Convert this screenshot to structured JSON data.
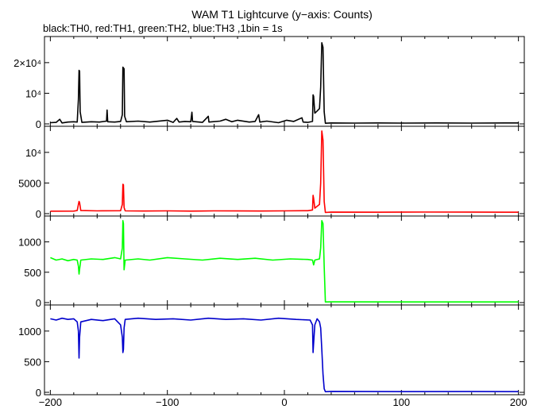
{
  "title": "WAM T1 Lightcurve (y−axis: Counts)",
  "subtitle": "black:TH0, red:TH1, green:TH2, blue:TH3 ,1bin = 1s",
  "chart_data": [
    {
      "type": "line",
      "series": [
        {
          "name": "TH0",
          "color": "#000000",
          "points": [
            [
              -200,
              400
            ],
            [
              -195,
              500
            ],
            [
              -192,
              1500
            ],
            [
              -190,
              300
            ],
            [
              -185,
              600
            ],
            [
              -180,
              700
            ],
            [
              -177,
              600
            ],
            [
              -176,
              8000
            ],
            [
              -175.5,
              17500
            ],
            [
              -175,
              17200
            ],
            [
              -174.5,
              4000
            ],
            [
              -173,
              500
            ],
            [
              -165,
              700
            ],
            [
              -158,
              600
            ],
            [
              -152,
              900
            ],
            [
              -151.5,
              4500
            ],
            [
              -151,
              700
            ],
            [
              -145,
              600
            ],
            [
              -140,
              800
            ],
            [
              -138.5,
              3000
            ],
            [
              -138,
              18500
            ],
            [
              -137,
              18000
            ],
            [
              -136.5,
              2500
            ],
            [
              -135,
              700
            ],
            [
              -125,
              900
            ],
            [
              -115,
              600
            ],
            [
              -100,
              1200
            ],
            [
              -95,
              500
            ],
            [
              -92,
              1800
            ],
            [
              -90,
              600
            ],
            [
              -85,
              800
            ],
            [
              -80,
              700
            ],
            [
              -79,
              3800
            ],
            [
              -78.5,
              800
            ],
            [
              -70,
              500
            ],
            [
              -65,
              2500
            ],
            [
              -64.5,
              600
            ],
            [
              -55,
              900
            ],
            [
              -50,
              1500
            ],
            [
              -45,
              700
            ],
            [
              -40,
              1200
            ],
            [
              -30,
              600
            ],
            [
              -25,
              800
            ],
            [
              -22,
              3000
            ],
            [
              -21,
              600
            ],
            [
              -15,
              900
            ],
            [
              -5,
              400
            ],
            [
              2,
              1200
            ],
            [
              8,
              800
            ],
            [
              15,
              2000
            ],
            [
              16,
              600
            ],
            [
              20,
              500
            ],
            [
              24,
              800
            ],
            [
              24.5,
              9500
            ],
            [
              25,
              9000
            ],
            [
              26,
              3500
            ],
            [
              28,
              4200
            ],
            [
              30,
              5000
            ],
            [
              31,
              12000
            ],
            [
              32,
              26500
            ],
            [
              33,
              25000
            ],
            [
              34,
              4000
            ],
            [
              35,
              200
            ],
            [
              40,
              300
            ],
            [
              60,
              250
            ],
            [
              80,
              300
            ],
            [
              100,
              250
            ],
            [
              130,
              300
            ],
            [
              160,
              250
            ],
            [
              200,
              300
            ]
          ]
        }
      ],
      "ylim": [
        0,
        28000
      ],
      "yticks": [
        {
          "v": 0,
          "label": "0"
        },
        {
          "v": 10000,
          "label": "10⁴"
        },
        {
          "v": 20000,
          "label": "2×10⁴"
        }
      ]
    },
    {
      "type": "line",
      "series": [
        {
          "name": "TH1",
          "color": "#ff0000",
          "points": [
            [
              -200,
              400
            ],
            [
              -180,
              420
            ],
            [
              -177,
              500
            ],
            [
              -176,
              1500
            ],
            [
              -175.5,
              2000
            ],
            [
              -175,
              1800
            ],
            [
              -174,
              500
            ],
            [
              -160,
              450
            ],
            [
              -140,
              480
            ],
            [
              -138.5,
              1500
            ],
            [
              -138,
              4800
            ],
            [
              -137.5,
              4700
            ],
            [
              -137,
              1000
            ],
            [
              -136,
              450
            ],
            [
              -120,
              430
            ],
            [
              -100,
              450
            ],
            [
              -80,
              420
            ],
            [
              -60,
              460
            ],
            [
              -40,
              440
            ],
            [
              -20,
              430
            ],
            [
              0,
              450
            ],
            [
              20,
              480
            ],
            [
              24,
              600
            ],
            [
              24.5,
              3000
            ],
            [
              25,
              2500
            ],
            [
              26,
              900
            ],
            [
              28,
              1200
            ],
            [
              30,
              1500
            ],
            [
              31,
              5000
            ],
            [
              32,
              13500
            ],
            [
              33,
              12000
            ],
            [
              34,
              2000
            ],
            [
              35,
              200
            ],
            [
              40,
              250
            ],
            [
              80,
              230
            ],
            [
              120,
              260
            ],
            [
              160,
              240
            ],
            [
              200,
              230
            ]
          ]
        }
      ],
      "ylim": [
        0,
        14000
      ],
      "yticks": [
        {
          "v": 0,
          "label": "0"
        },
        {
          "v": 5000,
          "label": "5000"
        },
        {
          "v": 10000,
          "label": "10⁴"
        }
      ]
    },
    {
      "type": "line",
      "series": [
        {
          "name": "TH2",
          "color": "#00ff00",
          "points": [
            [
              -200,
              740
            ],
            [
              -195,
              700
            ],
            [
              -190,
              720
            ],
            [
              -185,
              690
            ],
            [
              -180,
              710
            ],
            [
              -177,
              700
            ],
            [
              -176,
              600
            ],
            [
              -175.5,
              470
            ],
            [
              -175,
              550
            ],
            [
              -174,
              700
            ],
            [
              -165,
              720
            ],
            [
              -155,
              710
            ],
            [
              -145,
              740
            ],
            [
              -140,
              720
            ],
            [
              -138.5,
              900
            ],
            [
              -138,
              1350
            ],
            [
              -137.5,
              1300
            ],
            [
              -137,
              540
            ],
            [
              -136,
              700
            ],
            [
              -125,
              720
            ],
            [
              -115,
              700
            ],
            [
              -100,
              740
            ],
            [
              -85,
              720
            ],
            [
              -70,
              700
            ],
            [
              -55,
              730
            ],
            [
              -40,
              710
            ],
            [
              -25,
              730
            ],
            [
              -10,
              700
            ],
            [
              5,
              720
            ],
            [
              20,
              710
            ],
            [
              24,
              700
            ],
            [
              25,
              620
            ],
            [
              26,
              700
            ],
            [
              30,
              720
            ],
            [
              31,
              900
            ],
            [
              32,
              1350
            ],
            [
              33,
              1300
            ],
            [
              34,
              600
            ],
            [
              35,
              10
            ],
            [
              40,
              12
            ],
            [
              100,
              10
            ],
            [
              160,
              11
            ],
            [
              200,
              10
            ]
          ]
        }
      ],
      "ylim": [
        0,
        1400
      ],
      "yticks": [
        {
          "v": 0,
          "label": "0"
        },
        {
          "v": 500,
          "label": "500"
        },
        {
          "v": 1000,
          "label": "1000"
        }
      ]
    },
    {
      "type": "line",
      "series": [
        {
          "name": "TH3",
          "color": "#0000cc",
          "points": [
            [
              -200,
              1200
            ],
            [
              -195,
              1180
            ],
            [
              -190,
              1210
            ],
            [
              -185,
              1190
            ],
            [
              -180,
              1200
            ],
            [
              -177,
              1150
            ],
            [
              -176,
              1000
            ],
            [
              -175.5,
              560
            ],
            [
              -175,
              900
            ],
            [
              -174,
              1150
            ],
            [
              -165,
              1190
            ],
            [
              -155,
              1170
            ],
            [
              -145,
              1200
            ],
            [
              -140,
              1100
            ],
            [
              -138.5,
              900
            ],
            [
              -138,
              650
            ],
            [
              -137.5,
              700
            ],
            [
              -137,
              1050
            ],
            [
              -136,
              1190
            ],
            [
              -125,
              1210
            ],
            [
              -110,
              1190
            ],
            [
              -95,
              1200
            ],
            [
              -80,
              1180
            ],
            [
              -65,
              1210
            ],
            [
              -50,
              1190
            ],
            [
              -35,
              1200
            ],
            [
              -20,
              1180
            ],
            [
              -5,
              1210
            ],
            [
              10,
              1190
            ],
            [
              22,
              1180
            ],
            [
              24,
              1100
            ],
            [
              24.5,
              650
            ],
            [
              25,
              800
            ],
            [
              26,
              1100
            ],
            [
              28,
              1200
            ],
            [
              30,
              1150
            ],
            [
              31,
              1050
            ],
            [
              32,
              700
            ],
            [
              33,
              300
            ],
            [
              34,
              60
            ],
            [
              35,
              10
            ],
            [
              40,
              15
            ],
            [
              100,
              12
            ],
            [
              160,
              14
            ],
            [
              200,
              12
            ]
          ]
        }
      ],
      "ylim": [
        0,
        1400
      ],
      "yticks": [
        {
          "v": 0,
          "label": "0"
        },
        {
          "v": 500,
          "label": "500"
        },
        {
          "v": 1000,
          "label": "1000"
        }
      ]
    }
  ],
  "xaxis": {
    "range": [
      -205,
      205
    ],
    "ticks": [
      {
        "v": -200,
        "label": "−200"
      },
      {
        "v": -100,
        "label": "−100"
      },
      {
        "v": 0,
        "label": "0"
      },
      {
        "v": 100,
        "label": "100"
      },
      {
        "v": 200,
        "label": "200"
      }
    ],
    "minor_step": 20
  }
}
